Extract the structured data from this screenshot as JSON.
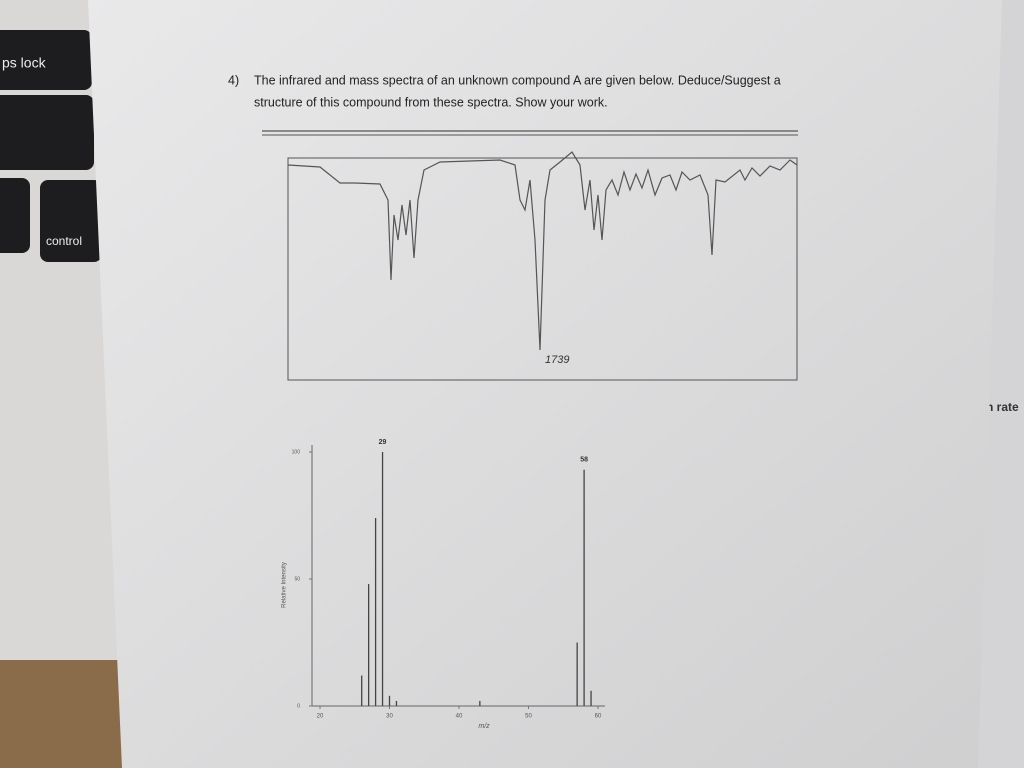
{
  "keyboard": {
    "caps_lock": "ps lock",
    "control": "control"
  },
  "question": {
    "number": "4)",
    "line1": "The infrared and mass spectra of an unknown compound A are given below. Deduce/Suggest a",
    "line2": "structure of this compound from these spectra. Show your work."
  },
  "ir_spectrum": {
    "annotation": "1739"
  },
  "mass_spectrum": {
    "mz": [
      26,
      27,
      28,
      29,
      30,
      31,
      43,
      57,
      58,
      59
    ],
    "intensities": [
      12,
      48,
      74,
      100,
      4,
      2,
      2,
      25,
      93,
      6
    ],
    "labeled_peaks": [
      3,
      8
    ],
    "xlim": [
      20,
      60
    ],
    "xticks": [
      20,
      30,
      40,
      50,
      60
    ],
    "ylim": [
      0,
      100
    ],
    "yticks": [
      0,
      50,
      100
    ],
    "xlabel": "m/z",
    "ylabel": "Relative Intensity"
  },
  "side_text": "n rate"
}
